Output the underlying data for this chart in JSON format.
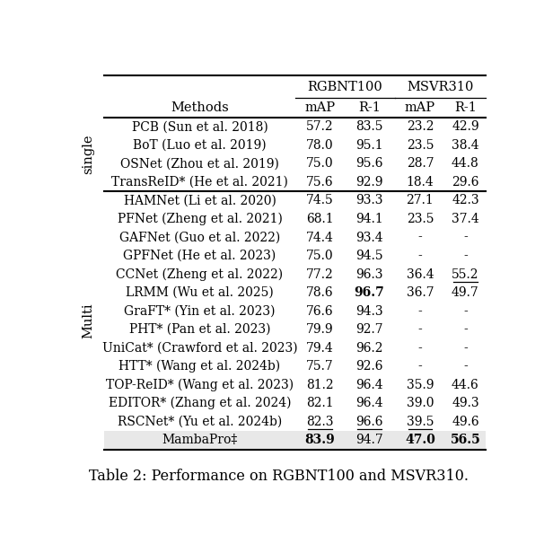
{
  "title": "Table 2: Performance on RGBNT100 and MSVR310.",
  "rows": [
    {
      "method": "PCB (Sun et al. 2018)",
      "rgbnt_map": "57.2",
      "rgbnt_r1": "83.5",
      "msvr_map": "23.2",
      "msvr_r1": "42.9",
      "bold": [],
      "underline": [],
      "group": "single"
    },
    {
      "method": "BoT (Luo et al. 2019)",
      "rgbnt_map": "78.0",
      "rgbnt_r1": "95.1",
      "msvr_map": "23.5",
      "msvr_r1": "38.4",
      "bold": [],
      "underline": [],
      "group": "single"
    },
    {
      "method": "OSNet (Zhou et al. 2019)",
      "rgbnt_map": "75.0",
      "rgbnt_r1": "95.6",
      "msvr_map": "28.7",
      "msvr_r1": "44.8",
      "bold": [],
      "underline": [],
      "group": "single"
    },
    {
      "method": "TransReID* (He et al. 2021)",
      "rgbnt_map": "75.6",
      "rgbnt_r1": "92.9",
      "msvr_map": "18.4",
      "msvr_r1": "29.6",
      "bold": [],
      "underline": [],
      "group": "single"
    },
    {
      "method": "HAMNet (Li et al. 2020)",
      "rgbnt_map": "74.5",
      "rgbnt_r1": "93.3",
      "msvr_map": "27.1",
      "msvr_r1": "42.3",
      "bold": [],
      "underline": [],
      "group": "multi"
    },
    {
      "method": "PFNet (Zheng et al. 2021)",
      "rgbnt_map": "68.1",
      "rgbnt_r1": "94.1",
      "msvr_map": "23.5",
      "msvr_r1": "37.4",
      "bold": [],
      "underline": [],
      "group": "multi"
    },
    {
      "method": "GAFNet (Guo et al. 2022)",
      "rgbnt_map": "74.4",
      "rgbnt_r1": "93.4",
      "msvr_map": "-",
      "msvr_r1": "-",
      "bold": [],
      "underline": [],
      "group": "multi"
    },
    {
      "method": "GPFNet (He et al. 2023)",
      "rgbnt_map": "75.0",
      "rgbnt_r1": "94.5",
      "msvr_map": "-",
      "msvr_r1": "-",
      "bold": [],
      "underline": [],
      "group": "multi"
    },
    {
      "method": "CCNet (Zheng et al. 2022)",
      "rgbnt_map": "77.2",
      "rgbnt_r1": "96.3",
      "msvr_map": "36.4",
      "msvr_r1": "55.2",
      "bold": [],
      "underline": [
        "msvr_r1"
      ],
      "group": "multi"
    },
    {
      "method": "LRMM (Wu et al. 2025)",
      "rgbnt_map": "78.6",
      "rgbnt_r1": "96.7",
      "msvr_map": "36.7",
      "msvr_r1": "49.7",
      "bold": [
        "rgbnt_r1"
      ],
      "underline": [],
      "group": "multi"
    },
    {
      "method": "GraFT* (Yin et al. 2023)",
      "rgbnt_map": "76.6",
      "rgbnt_r1": "94.3",
      "msvr_map": "-",
      "msvr_r1": "-",
      "bold": [],
      "underline": [],
      "group": "multi"
    },
    {
      "method": "PHT* (Pan et al. 2023)",
      "rgbnt_map": "79.9",
      "rgbnt_r1": "92.7",
      "msvr_map": "-",
      "msvr_r1": "-",
      "bold": [],
      "underline": [],
      "group": "multi"
    },
    {
      "method": "UniCat* (Crawford et al. 2023)",
      "rgbnt_map": "79.4",
      "rgbnt_r1": "96.2",
      "msvr_map": "-",
      "msvr_r1": "-",
      "bold": [],
      "underline": [],
      "group": "multi"
    },
    {
      "method": "HTT* (Wang et al. 2024b)",
      "rgbnt_map": "75.7",
      "rgbnt_r1": "92.6",
      "msvr_map": "-",
      "msvr_r1": "-",
      "bold": [],
      "underline": [],
      "group": "multi"
    },
    {
      "method": "TOP-ReID* (Wang et al. 2023)",
      "rgbnt_map": "81.2",
      "rgbnt_r1": "96.4",
      "msvr_map": "35.9",
      "msvr_r1": "44.6",
      "bold": [],
      "underline": [],
      "group": "multi"
    },
    {
      "method": "EDITOR* (Zhang et al. 2024)",
      "rgbnt_map": "82.1",
      "rgbnt_r1": "96.4",
      "msvr_map": "39.0",
      "msvr_r1": "49.3",
      "bold": [],
      "underline": [],
      "group": "multi"
    },
    {
      "method": "RSCNet* (Yu et al. 2024b)",
      "rgbnt_map": "82.3",
      "rgbnt_r1": "96.6",
      "msvr_map": "39.5",
      "msvr_r1": "49.6",
      "bold": [],
      "underline": [
        "rgbnt_map",
        "rgbnt_r1",
        "msvr_map"
      ],
      "group": "multi"
    },
    {
      "method": "MambaPro‡",
      "rgbnt_map": "83.9",
      "rgbnt_r1": "94.7",
      "msvr_map": "47.0",
      "msvr_r1": "56.5",
      "bold": [
        "rgbnt_map",
        "msvr_map",
        "msvr_r1"
      ],
      "underline": [],
      "group": "multi",
      "shaded": true
    }
  ],
  "shaded_color": "#e8e8e8",
  "fig_width": 6.06,
  "fig_height": 6.06,
  "dpi": 100,
  "fs_header": 10.5,
  "fs_data": 10.0,
  "fs_group": 10.5,
  "fs_caption": 11.5
}
